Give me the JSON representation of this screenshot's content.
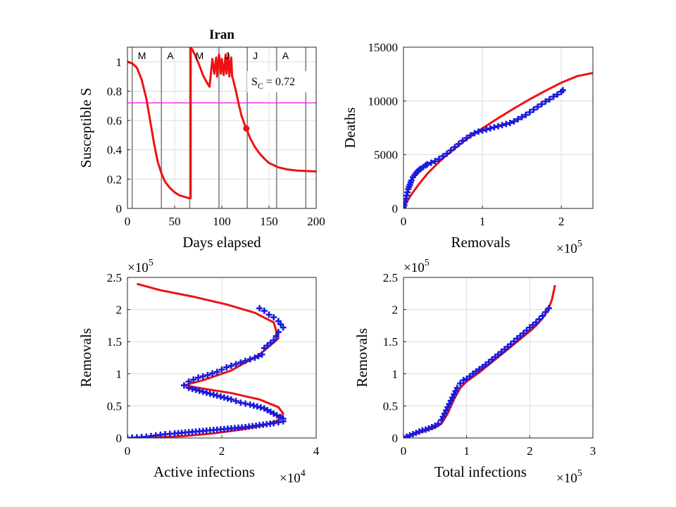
{
  "colors": {
    "model": "#ee1111",
    "data": "#1a1adc",
    "threshold": "#ee22ee",
    "month_line": "#808080"
  },
  "chart_data": [
    {
      "type": "line",
      "title": "Iran",
      "xlabel": "Days elapsed",
      "ylabel": "Susceptible S",
      "xlim": [
        0,
        200
      ],
      "ylim": [
        0,
        1.1
      ],
      "xticks": [
        0,
        50,
        100,
        150,
        200
      ],
      "yticks": [
        0,
        0.2,
        0.4,
        0.6,
        0.8,
        1
      ],
      "grid": true,
      "annotation": {
        "prefix": "S",
        "sub": "C",
        "suffix": " = 0.72"
      },
      "threshold": 0.72,
      "marker_point": {
        "x": 126,
        "y": 0.545
      },
      "month_lines": [
        {
          "x": 5,
          "label": "M"
        },
        {
          "x": 36,
          "label": "A"
        },
        {
          "x": 66,
          "label": "M"
        },
        {
          "x": 97,
          "label": "J"
        },
        {
          "x": 127,
          "label": "J"
        },
        {
          "x": 158,
          "label": "A"
        },
        {
          "x": 189,
          "label": ""
        }
      ],
      "series": [
        {
          "type": "line",
          "x": [
            0,
            5,
            10,
            15,
            20,
            24,
            28,
            32,
            36,
            40,
            45,
            50,
            55,
            60,
            65,
            67,
            67,
            69,
            72,
            76,
            80,
            84,
            87,
            90,
            92,
            94,
            95,
            97,
            99,
            100,
            102,
            104,
            105,
            107,
            108,
            110,
            111,
            112,
            115,
            118,
            121,
            124,
            126,
            130,
            135,
            140,
            145,
            150,
            160,
            170,
            180,
            190,
            200
          ],
          "y": [
            1.0,
            0.99,
            0.96,
            0.88,
            0.75,
            0.6,
            0.45,
            0.32,
            0.24,
            0.18,
            0.14,
            0.11,
            0.09,
            0.08,
            0.07,
            0.07,
            1.1,
            1.08,
            1.04,
            0.98,
            0.91,
            0.86,
            0.83,
            1.02,
            0.92,
            1.03,
            0.9,
            1.05,
            0.92,
            1.02,
            0.91,
            1.05,
            0.92,
            1.05,
            0.9,
            1.03,
            0.9,
            0.88,
            0.8,
            0.71,
            0.63,
            0.575,
            0.545,
            0.48,
            0.42,
            0.375,
            0.34,
            0.31,
            0.28,
            0.265,
            0.258,
            0.255,
            0.252
          ]
        }
      ]
    },
    {
      "type": "scatter",
      "title": "",
      "xlabel": "Removals",
      "ylabel": "Deaths",
      "x_exponent": "5",
      "xlim": [
        0,
        2.4
      ],
      "ylim": [
        0,
        15000
      ],
      "xticks": [
        0,
        1,
        2
      ],
      "yticks": [
        0,
        5000,
        10000,
        15000
      ],
      "grid": true,
      "series": [
        {
          "type": "line",
          "x": [
            0,
            0.02,
            0.05,
            0.1,
            0.2,
            0.3,
            0.4,
            0.5,
            0.6,
            0.8,
            1.0,
            1.2,
            1.4,
            1.6,
            1.8,
            2.0,
            2.2,
            2.4
          ],
          "y": [
            0,
            300,
            700,
            1300,
            2300,
            3200,
            3950,
            4650,
            5300,
            6450,
            7450,
            8400,
            9300,
            10150,
            10950,
            11700,
            12300,
            12600
          ]
        },
        {
          "type": "scatter",
          "x": [
            0,
            0.01,
            0.02,
            0.03,
            0.04,
            0.05,
            0.06,
            0.07,
            0.08,
            0.09,
            0.1,
            0.12,
            0.14,
            0.16,
            0.18,
            0.2,
            0.22,
            0.25,
            0.28,
            0.3,
            0.35,
            0.4,
            0.45,
            0.5,
            0.55,
            0.6,
            0.65,
            0.7,
            0.75,
            0.8,
            0.85,
            0.9,
            0.95,
            1.0,
            1.05,
            1.1,
            1.15,
            1.2,
            1.25,
            1.3,
            1.35,
            1.4,
            1.45,
            1.5,
            1.55,
            1.6,
            1.65,
            1.7,
            1.75,
            1.8,
            1.85,
            1.9,
            1.95,
            2.0,
            2.02
          ],
          "y": [
            100,
            300,
            600,
            900,
            1200,
            1500,
            1800,
            2000,
            2200,
            2400,
            2600,
            2900,
            3100,
            3300,
            3450,
            3600,
            3700,
            3850,
            4000,
            4100,
            4250,
            4400,
            4600,
            4850,
            5100,
            5400,
            5700,
            6000,
            6300,
            6550,
            6800,
            7000,
            7150,
            7250,
            7350,
            7450,
            7550,
            7650,
            7750,
            7850,
            7950,
            8100,
            8300,
            8500,
            8700,
            8950,
            9200,
            9450,
            9700,
            9950,
            10150,
            10400,
            10600,
            10850,
            11000
          ]
        }
      ]
    },
    {
      "type": "scatter",
      "title": "",
      "xlabel": "Active infections",
      "ylabel": "Removals",
      "x_exponent": "4",
      "y_exponent": "5",
      "xlim": [
        0,
        4
      ],
      "ylim": [
        0,
        2.5
      ],
      "xticks": [
        0,
        2,
        4
      ],
      "yticks": [
        0,
        0.5,
        1,
        1.5,
        2,
        2.5
      ],
      "ytick_labels": [
        "0",
        "0.5",
        "1",
        "1.5",
        "2",
        "2.5"
      ],
      "grid": true,
      "series": [
        {
          "type": "line",
          "x": [
            0.1,
            0.6,
            1.2,
            1.8,
            2.4,
            2.9,
            3.2,
            3.3,
            3.2,
            2.8,
            2.2,
            1.6,
            1.2,
            1.6,
            2.2,
            2.8,
            3.2,
            3.1,
            2.7,
            2.1,
            1.4,
            0.7,
            0.2
          ],
          "y": [
            0.0,
            0.01,
            0.03,
            0.07,
            0.13,
            0.2,
            0.28,
            0.38,
            0.48,
            0.6,
            0.7,
            0.77,
            0.82,
            0.9,
            1.05,
            1.3,
            1.55,
            1.8,
            1.95,
            2.08,
            2.2,
            2.3,
            2.4
          ]
        },
        {
          "type": "scatter",
          "x": [
            0.0,
            0.2,
            0.4,
            0.6,
            0.8,
            1.0,
            1.3,
            1.6,
            1.9,
            2.2,
            2.5,
            2.8,
            3.1,
            3.3,
            3.3,
            3.1,
            2.9,
            2.6,
            2.4,
            2.2,
            1.9,
            1.6,
            1.3,
            1.2,
            1.3,
            1.5,
            1.7,
            1.9,
            2.1,
            2.3,
            2.5,
            2.7,
            2.85,
            2.9,
            3.1,
            3.2,
            3.3,
            3.2,
            3.1,
            3.0,
            2.9,
            2.8
          ],
          "y": [
            0.0,
            0.01,
            0.02,
            0.04,
            0.06,
            0.07,
            0.09,
            0.11,
            0.13,
            0.15,
            0.17,
            0.2,
            0.23,
            0.26,
            0.3,
            0.38,
            0.46,
            0.52,
            0.55,
            0.6,
            0.66,
            0.72,
            0.78,
            0.82,
            0.88,
            0.94,
            0.98,
            1.03,
            1.1,
            1.15,
            1.2,
            1.25,
            1.3,
            1.4,
            1.52,
            1.65,
            1.72,
            1.82,
            1.88,
            1.92,
            1.98,
            2.02
          ]
        }
      ]
    },
    {
      "type": "scatter",
      "title": "",
      "xlabel": "Total infections",
      "ylabel": "Removals",
      "x_exponent": "5",
      "y_exponent": "5",
      "xlim": [
        0,
        3
      ],
      "ylim": [
        0,
        2.5
      ],
      "xticks": [
        0,
        1,
        2,
        3
      ],
      "yticks": [
        0,
        0.5,
        1,
        1.5,
        2,
        2.5
      ],
      "grid": true,
      "series": [
        {
          "type": "line",
          "x": [
            0,
            0.1,
            0.2,
            0.3,
            0.4,
            0.5,
            0.6,
            0.7,
            0.8,
            0.9,
            1.0,
            1.1,
            1.2,
            1.4,
            1.6,
            1.8,
            2.0,
            2.1,
            2.2,
            2.3,
            2.35,
            2.4
          ],
          "y": [
            0,
            0.03,
            0.07,
            0.1,
            0.13,
            0.16,
            0.22,
            0.38,
            0.6,
            0.78,
            0.88,
            0.95,
            1.02,
            1.18,
            1.34,
            1.5,
            1.66,
            1.75,
            1.86,
            2.02,
            2.15,
            2.38
          ]
        },
        {
          "type": "scatter",
          "x": [
            0,
            0.05,
            0.1,
            0.15,
            0.2,
            0.25,
            0.3,
            0.35,
            0.4,
            0.45,
            0.5,
            0.55,
            0.6,
            0.65,
            0.7,
            0.75,
            0.8,
            0.85,
            0.9,
            0.95,
            1.0,
            1.05,
            1.1,
            1.2,
            1.3,
            1.4,
            1.5,
            1.6,
            1.7,
            1.8,
            1.9,
            2.0,
            2.1,
            2.2,
            2.3
          ],
          "y": [
            0.0,
            0.02,
            0.04,
            0.06,
            0.08,
            0.1,
            0.12,
            0.13,
            0.15,
            0.17,
            0.19,
            0.22,
            0.28,
            0.38,
            0.48,
            0.58,
            0.68,
            0.78,
            0.85,
            0.9,
            0.92,
            0.96,
            1.0,
            1.07,
            1.14,
            1.22,
            1.3,
            1.38,
            1.46,
            1.55,
            1.63,
            1.72,
            1.8,
            1.9,
            2.02
          ]
        }
      ]
    }
  ]
}
